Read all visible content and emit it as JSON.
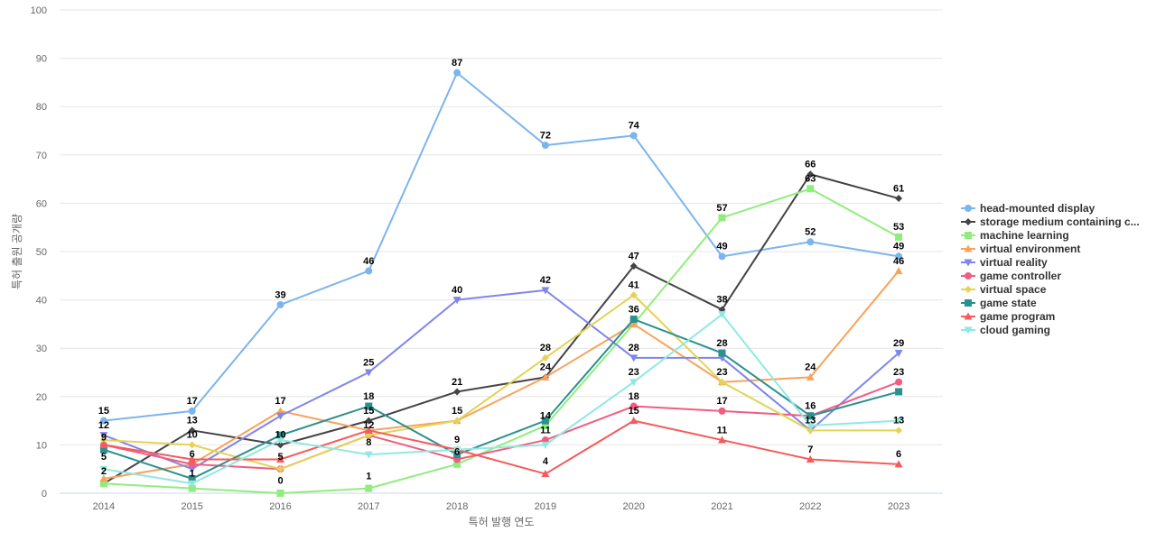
{
  "chart_data": {
    "type": "line",
    "xlabel": "특허 발행 연도",
    "ylabel": "특허 출원 공개량",
    "ylim": [
      0,
      100
    ],
    "yticks": [
      0,
      10,
      20,
      30,
      40,
      50,
      60,
      70,
      80,
      90,
      100
    ],
    "grid": true,
    "legend_position": "right",
    "x": [
      "2014",
      "2015",
      "2016",
      "2017",
      "2018",
      "2019",
      "2020",
      "2021",
      "2022",
      "2023"
    ],
    "series": [
      {
        "name": "head-mounted display",
        "color": "#7cb5ec",
        "marker": "circle",
        "values": [
          15,
          17,
          39,
          46,
          87,
          72,
          74,
          49,
          52,
          49
        ]
      },
      {
        "name": "storage medium containing c...",
        "color": "#434348",
        "marker": "diamond",
        "values": [
          2,
          13,
          10,
          15,
          21,
          24,
          47,
          38,
          66,
          61
        ]
      },
      {
        "name": "machine learning",
        "color": "#90ed7d",
        "marker": "square",
        "values": [
          2,
          1,
          0,
          1,
          6,
          14,
          35,
          57,
          63,
          53
        ]
      },
      {
        "name": "virtual environment",
        "color": "#f7a35c",
        "marker": "triangle",
        "values": [
          3,
          6,
          17,
          13,
          15,
          24,
          35,
          23,
          24,
          46
        ]
      },
      {
        "name": "virtual reality",
        "color": "#8085e9",
        "marker": "triangle-down",
        "values": [
          12,
          5,
          16,
          25,
          40,
          42,
          28,
          28,
          13,
          29
        ]
      },
      {
        "name": "game controller",
        "color": "#f15c80",
        "marker": "circle",
        "values": [
          10,
          6,
          5,
          12,
          7,
          11,
          18,
          17,
          16,
          23
        ]
      },
      {
        "name": "virtual space",
        "color": "#e4d354",
        "marker": "diamond",
        "values": [
          11,
          10,
          5,
          12,
          15,
          28,
          41,
          23,
          13,
          13
        ]
      },
      {
        "name": "game state",
        "color": "#2b908f",
        "marker": "square",
        "values": [
          9,
          3,
          12,
          18,
          8,
          15,
          36,
          29,
          16,
          21
        ]
      },
      {
        "name": "game program",
        "color": "#f45b5b",
        "marker": "triangle",
        "values": [
          10,
          7,
          7,
          13,
          9,
          4,
          15,
          11,
          7,
          6
        ]
      },
      {
        "name": "cloud gaming",
        "color": "#91e8e1",
        "marker": "triangle-down",
        "values": [
          5,
          2,
          11,
          8,
          9,
          10,
          23,
          37,
          14,
          15
        ]
      }
    ],
    "data_labels": [
      {
        "x": "2014",
        "text": "15",
        "y": 15.5
      },
      {
        "x": "2014",
        "text": "12",
        "y": 12.5
      },
      {
        "x": "2014",
        "text": "9",
        "y": 10
      },
      {
        "x": "2014",
        "text": "5",
        "y": 6
      },
      {
        "x": "2014",
        "text": "2",
        "y": 3
      },
      {
        "x": "2015",
        "text": "17",
        "y": 17.5
      },
      {
        "x": "2015",
        "text": "13",
        "y": 13.5
      },
      {
        "x": "2015",
        "text": "10",
        "y": 10.5
      },
      {
        "x": "2015",
        "text": "6",
        "y": 6.5
      },
      {
        "x": "2015",
        "text": "1",
        "y": 2.5
      },
      {
        "x": "2016",
        "text": "39",
        "y": 39.5
      },
      {
        "x": "2016",
        "text": "17",
        "y": 17.5
      },
      {
        "x": "2016",
        "text": "10",
        "y": 10.5
      },
      {
        "x": "2016",
        "text": "5",
        "y": 6
      },
      {
        "x": "2016",
        "text": "0",
        "y": 1
      },
      {
        "x": "2017",
        "text": "46",
        "y": 46.5
      },
      {
        "x": "2017",
        "text": "25",
        "y": 25.5
      },
      {
        "x": "2017",
        "text": "18",
        "y": 18.5
      },
      {
        "x": "2017",
        "text": "15",
        "y": 15.5
      },
      {
        "x": "2017",
        "text": "12",
        "y": 12.5
      },
      {
        "x": "2017",
        "text": "8",
        "y": 9
      },
      {
        "x": "2017",
        "text": "1",
        "y": 2
      },
      {
        "x": "2018",
        "text": "87",
        "y": 87.5
      },
      {
        "x": "2018",
        "text": "40",
        "y": 40.5
      },
      {
        "x": "2018",
        "text": "21",
        "y": 21.5
      },
      {
        "x": "2018",
        "text": "15",
        "y": 15.5
      },
      {
        "x": "2018",
        "text": "9",
        "y": 9.5
      },
      {
        "x": "2018",
        "text": "6",
        "y": 7
      },
      {
        "x": "2019",
        "text": "72",
        "y": 72.5
      },
      {
        "x": "2019",
        "text": "42",
        "y": 42.5
      },
      {
        "x": "2019",
        "text": "28",
        "y": 28.5
      },
      {
        "x": "2019",
        "text": "24",
        "y": 24.5
      },
      {
        "x": "2019",
        "text": "14",
        "y": 14.5
      },
      {
        "x": "2019",
        "text": "11",
        "y": 11.5
      },
      {
        "x": "2019",
        "text": "4",
        "y": 5
      },
      {
        "x": "2020",
        "text": "74",
        "y": 74.5
      },
      {
        "x": "2020",
        "text": "47",
        "y": 47.5
      },
      {
        "x": "2020",
        "text": "41",
        "y": 41.5
      },
      {
        "x": "2020",
        "text": "36",
        "y": 36.5
      },
      {
        "x": "2020",
        "text": "28",
        "y": 28.5
      },
      {
        "x": "2020",
        "text": "23",
        "y": 23.5
      },
      {
        "x": "2020",
        "text": "18",
        "y": 18.5
      },
      {
        "x": "2020",
        "text": "15",
        "y": 15.5
      },
      {
        "x": "2021",
        "text": "57",
        "y": 57.5
      },
      {
        "x": "2021",
        "text": "49",
        "y": 49.5
      },
      {
        "x": "2021",
        "text": "38",
        "y": 38.5
      },
      {
        "x": "2021",
        "text": "28",
        "y": 29.5
      },
      {
        "x": "2021",
        "text": "23",
        "y": 23.5
      },
      {
        "x": "2021",
        "text": "17",
        "y": 17.5
      },
      {
        "x": "2021",
        "text": "11",
        "y": 11.5
      },
      {
        "x": "2022",
        "text": "66",
        "y": 66.5
      },
      {
        "x": "2022",
        "text": "63",
        "y": 63.5
      },
      {
        "x": "2022",
        "text": "52",
        "y": 52.5
      },
      {
        "x": "2022",
        "text": "24",
        "y": 24.5
      },
      {
        "x": "2022",
        "text": "16",
        "y": 16.5
      },
      {
        "x": "2022",
        "text": "13",
        "y": 13.5
      },
      {
        "x": "2022",
        "text": "7",
        "y": 7.5
      },
      {
        "x": "2023",
        "text": "61",
        "y": 61.5
      },
      {
        "x": "2023",
        "text": "53",
        "y": 53.5
      },
      {
        "x": "2023",
        "text": "49",
        "y": 49.5
      },
      {
        "x": "2023",
        "text": "46",
        "y": 46.5
      },
      {
        "x": "2023",
        "text": "29",
        "y": 29.5
      },
      {
        "x": "2023",
        "text": "23",
        "y": 23.5
      },
      {
        "x": "2023",
        "text": "13",
        "y": 13.5
      },
      {
        "x": "2023",
        "text": "6",
        "y": 6.5
      }
    ]
  }
}
